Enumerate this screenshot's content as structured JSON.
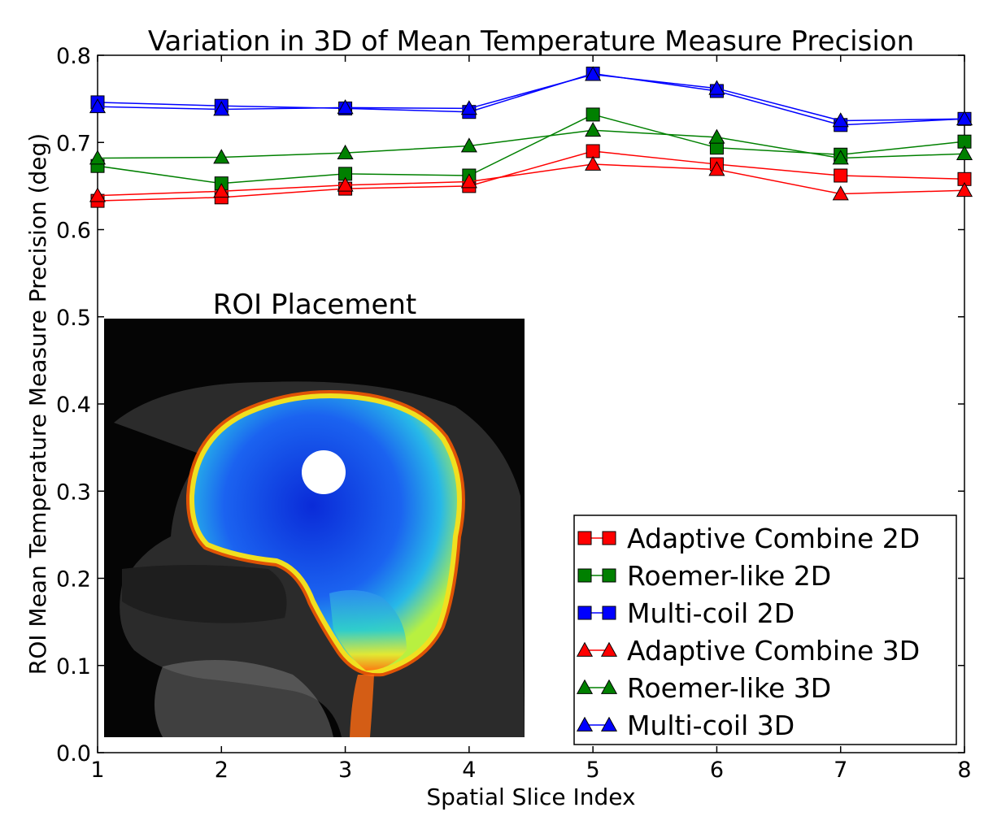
{
  "chart_data": {
    "type": "line",
    "title": "Variation in 3D of Mean Temperature Measure Precision",
    "xlabel": "Spatial Slice Index",
    "ylabel": "ROI Mean Temperature Measure Precision (deg)",
    "xlim": [
      1,
      8
    ],
    "ylim": [
      0.0,
      0.8
    ],
    "xticks": [
      "1",
      "2",
      "3",
      "4",
      "5",
      "6",
      "7",
      "8"
    ],
    "yticks": [
      "0.0",
      "0.1",
      "0.2",
      "0.3",
      "0.4",
      "0.5",
      "0.6",
      "0.7",
      "0.8"
    ],
    "x": [
      1,
      2,
      3,
      4,
      5,
      6,
      7,
      8
    ],
    "legend_position": "lower-right",
    "series": [
      {
        "name": "Adaptive Combine 2D",
        "color": "#ff0000",
        "marker": "square",
        "values": [
          0.633,
          0.637,
          0.647,
          0.65,
          0.69,
          0.675,
          0.662,
          0.658
        ]
      },
      {
        "name": "Roemer-like 2D",
        "color": "#008000",
        "marker": "square",
        "values": [
          0.673,
          0.653,
          0.664,
          0.662,
          0.732,
          0.694,
          0.686,
          0.701
        ]
      },
      {
        "name": "Multi-coil 2D",
        "color": "#0000ff",
        "marker": "square",
        "values": [
          0.746,
          0.742,
          0.739,
          0.735,
          0.779,
          0.759,
          0.72,
          0.727
        ]
      },
      {
        "name": "Adaptive Combine 3D",
        "color": "#ff0000",
        "marker": "triangle",
        "values": [
          0.639,
          0.644,
          0.651,
          0.655,
          0.675,
          0.669,
          0.641,
          0.645
        ]
      },
      {
        "name": "Roemer-like 3D",
        "color": "#008000",
        "marker": "triangle",
        "values": [
          0.682,
          0.683,
          0.688,
          0.696,
          0.714,
          0.706,
          0.682,
          0.687
        ]
      },
      {
        "name": "Multi-coil 3D",
        "color": "#0000ff",
        "marker": "triangle",
        "values": [
          0.741,
          0.738,
          0.74,
          0.739,
          0.778,
          0.762,
          0.725,
          0.727
        ]
      }
    ],
    "inset": {
      "title": "ROI Placement",
      "description_hidden": true
    }
  }
}
